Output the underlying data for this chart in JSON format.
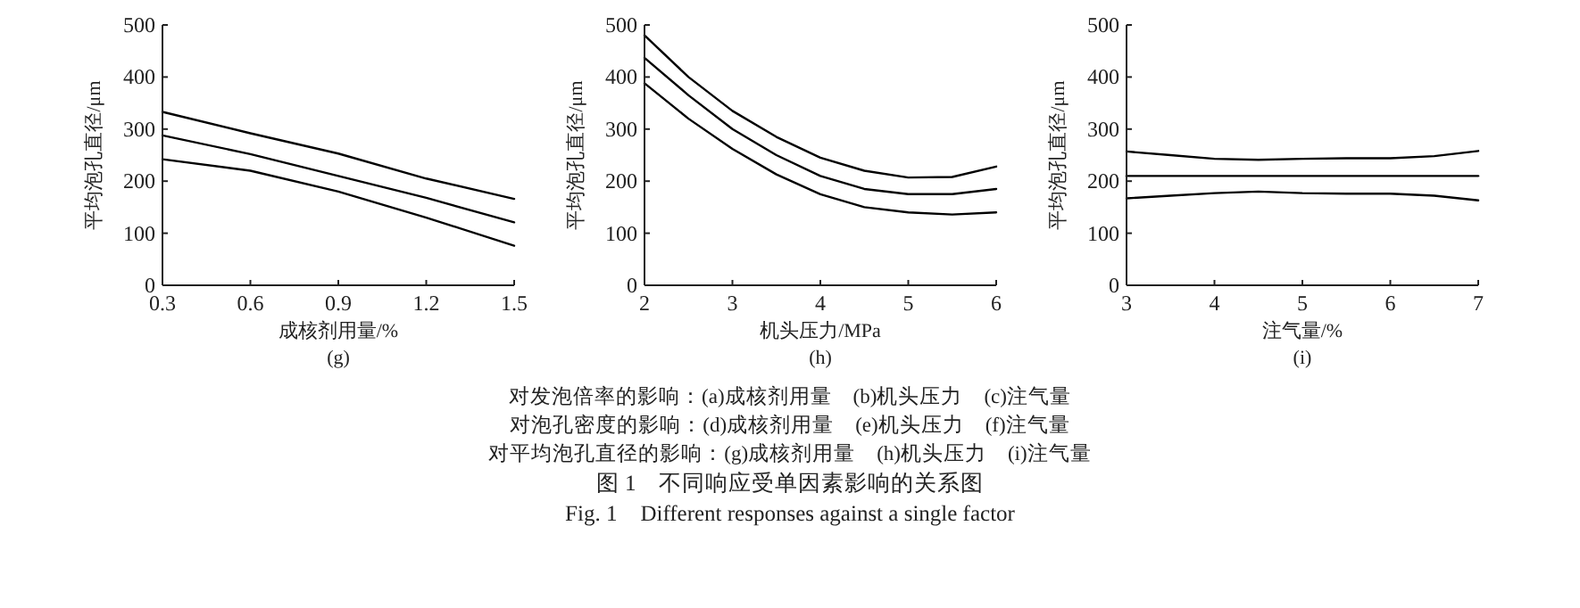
{
  "chart_data": [
    {
      "type": "line",
      "title": "(g)",
      "xlabel": "成核剂用量/%",
      "ylabel": "平均泡孔直径/μm",
      "x": [
        0.3,
        0.6,
        0.9,
        1.2,
        1.5
      ],
      "xlim": [
        0.3,
        1.5
      ],
      "ylim": [
        0,
        500
      ],
      "xticks": [
        0.3,
        0.6,
        0.9,
        1.2,
        1.5
      ],
      "yticks": [
        0,
        100,
        200,
        300,
        400,
        500
      ],
      "series": [
        {
          "color": "#000000",
          "values": [
            333,
            292,
            253,
            205,
            166
          ]
        },
        {
          "color": "#000000",
          "values": [
            288,
            252,
            210,
            168,
            121
          ]
        },
        {
          "color": "#000000",
          "values": [
            242,
            220,
            180,
            130,
            76
          ]
        }
      ]
    },
    {
      "type": "line",
      "title": "(h)",
      "xlabel": "机头压力/MPa",
      "ylabel": "平均泡孔直径/μm",
      "x": [
        2,
        2.5,
        3,
        3.5,
        4,
        4.5,
        5,
        5.5,
        6
      ],
      "xlim": [
        2,
        6
      ],
      "ylim": [
        0,
        500
      ],
      "xticks": [
        2,
        3,
        4,
        5,
        6
      ],
      "yticks": [
        0,
        100,
        200,
        300,
        400,
        500
      ],
      "series": [
        {
          "color": "#000000",
          "values": [
            480,
            400,
            335,
            285,
            245,
            220,
            207,
            208,
            228
          ]
        },
        {
          "color": "#000000",
          "values": [
            437,
            365,
            300,
            250,
            210,
            185,
            175,
            175,
            185
          ]
        },
        {
          "color": "#000000",
          "values": [
            388,
            320,
            262,
            213,
            175,
            150,
            140,
            136,
            140
          ]
        }
      ],
      "annotations": [
        "对发泡倍率的影响：(a)成核剂用量　(b)机头压力　(c)注气量",
        "对泡孔密度的影响：(d)成核剂用量　(e)机头压力　(f)注气量",
        "对平均泡孔直径的影响：(g)成核剂用量　(h)机头压力　(i)注气量",
        "图 1　不同响应受单因素影响的关系图",
        "Fig. 1　Different responses against a single factor"
      ]
    },
    {
      "type": "line",
      "title": "(i)",
      "xlabel": "注气量/%",
      "ylabel": "平均泡孔直径/μm",
      "x": [
        3,
        3.5,
        4,
        4.5,
        5,
        5.5,
        6,
        6.5,
        7
      ],
      "xlim": [
        3,
        7
      ],
      "ylim": [
        0,
        500
      ],
      "xticks": [
        3,
        4,
        5,
        6,
        7
      ],
      "yticks": [
        0,
        100,
        200,
        300,
        400,
        500
      ],
      "series": [
        {
          "color": "#000000",
          "values": [
            257,
            250,
            243,
            241,
            243,
            244,
            244,
            248,
            258
          ]
        },
        {
          "color": "#000000",
          "values": [
            210,
            210,
            210,
            210,
            210,
            210,
            210,
            210,
            210
          ]
        },
        {
          "color": "#000000",
          "values": [
            167,
            172,
            177,
            180,
            177,
            176,
            176,
            172,
            163
          ]
        }
      ]
    }
  ]
}
